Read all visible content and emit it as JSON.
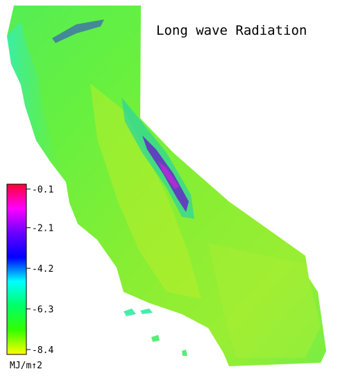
{
  "title": "Long wave Radiation",
  "legend": {
    "ticks": [
      -0.1,
      -2.1,
      -4.2,
      -6.3,
      -8.4
    ],
    "colors": [
      "#ff0033",
      "#ff00ff",
      "#6a00ff",
      "#0000ff",
      "#00ffff",
      "#00ff66",
      "#33ff00",
      "#ffff00"
    ],
    "unit": "MJ/m↑2"
  }
}
